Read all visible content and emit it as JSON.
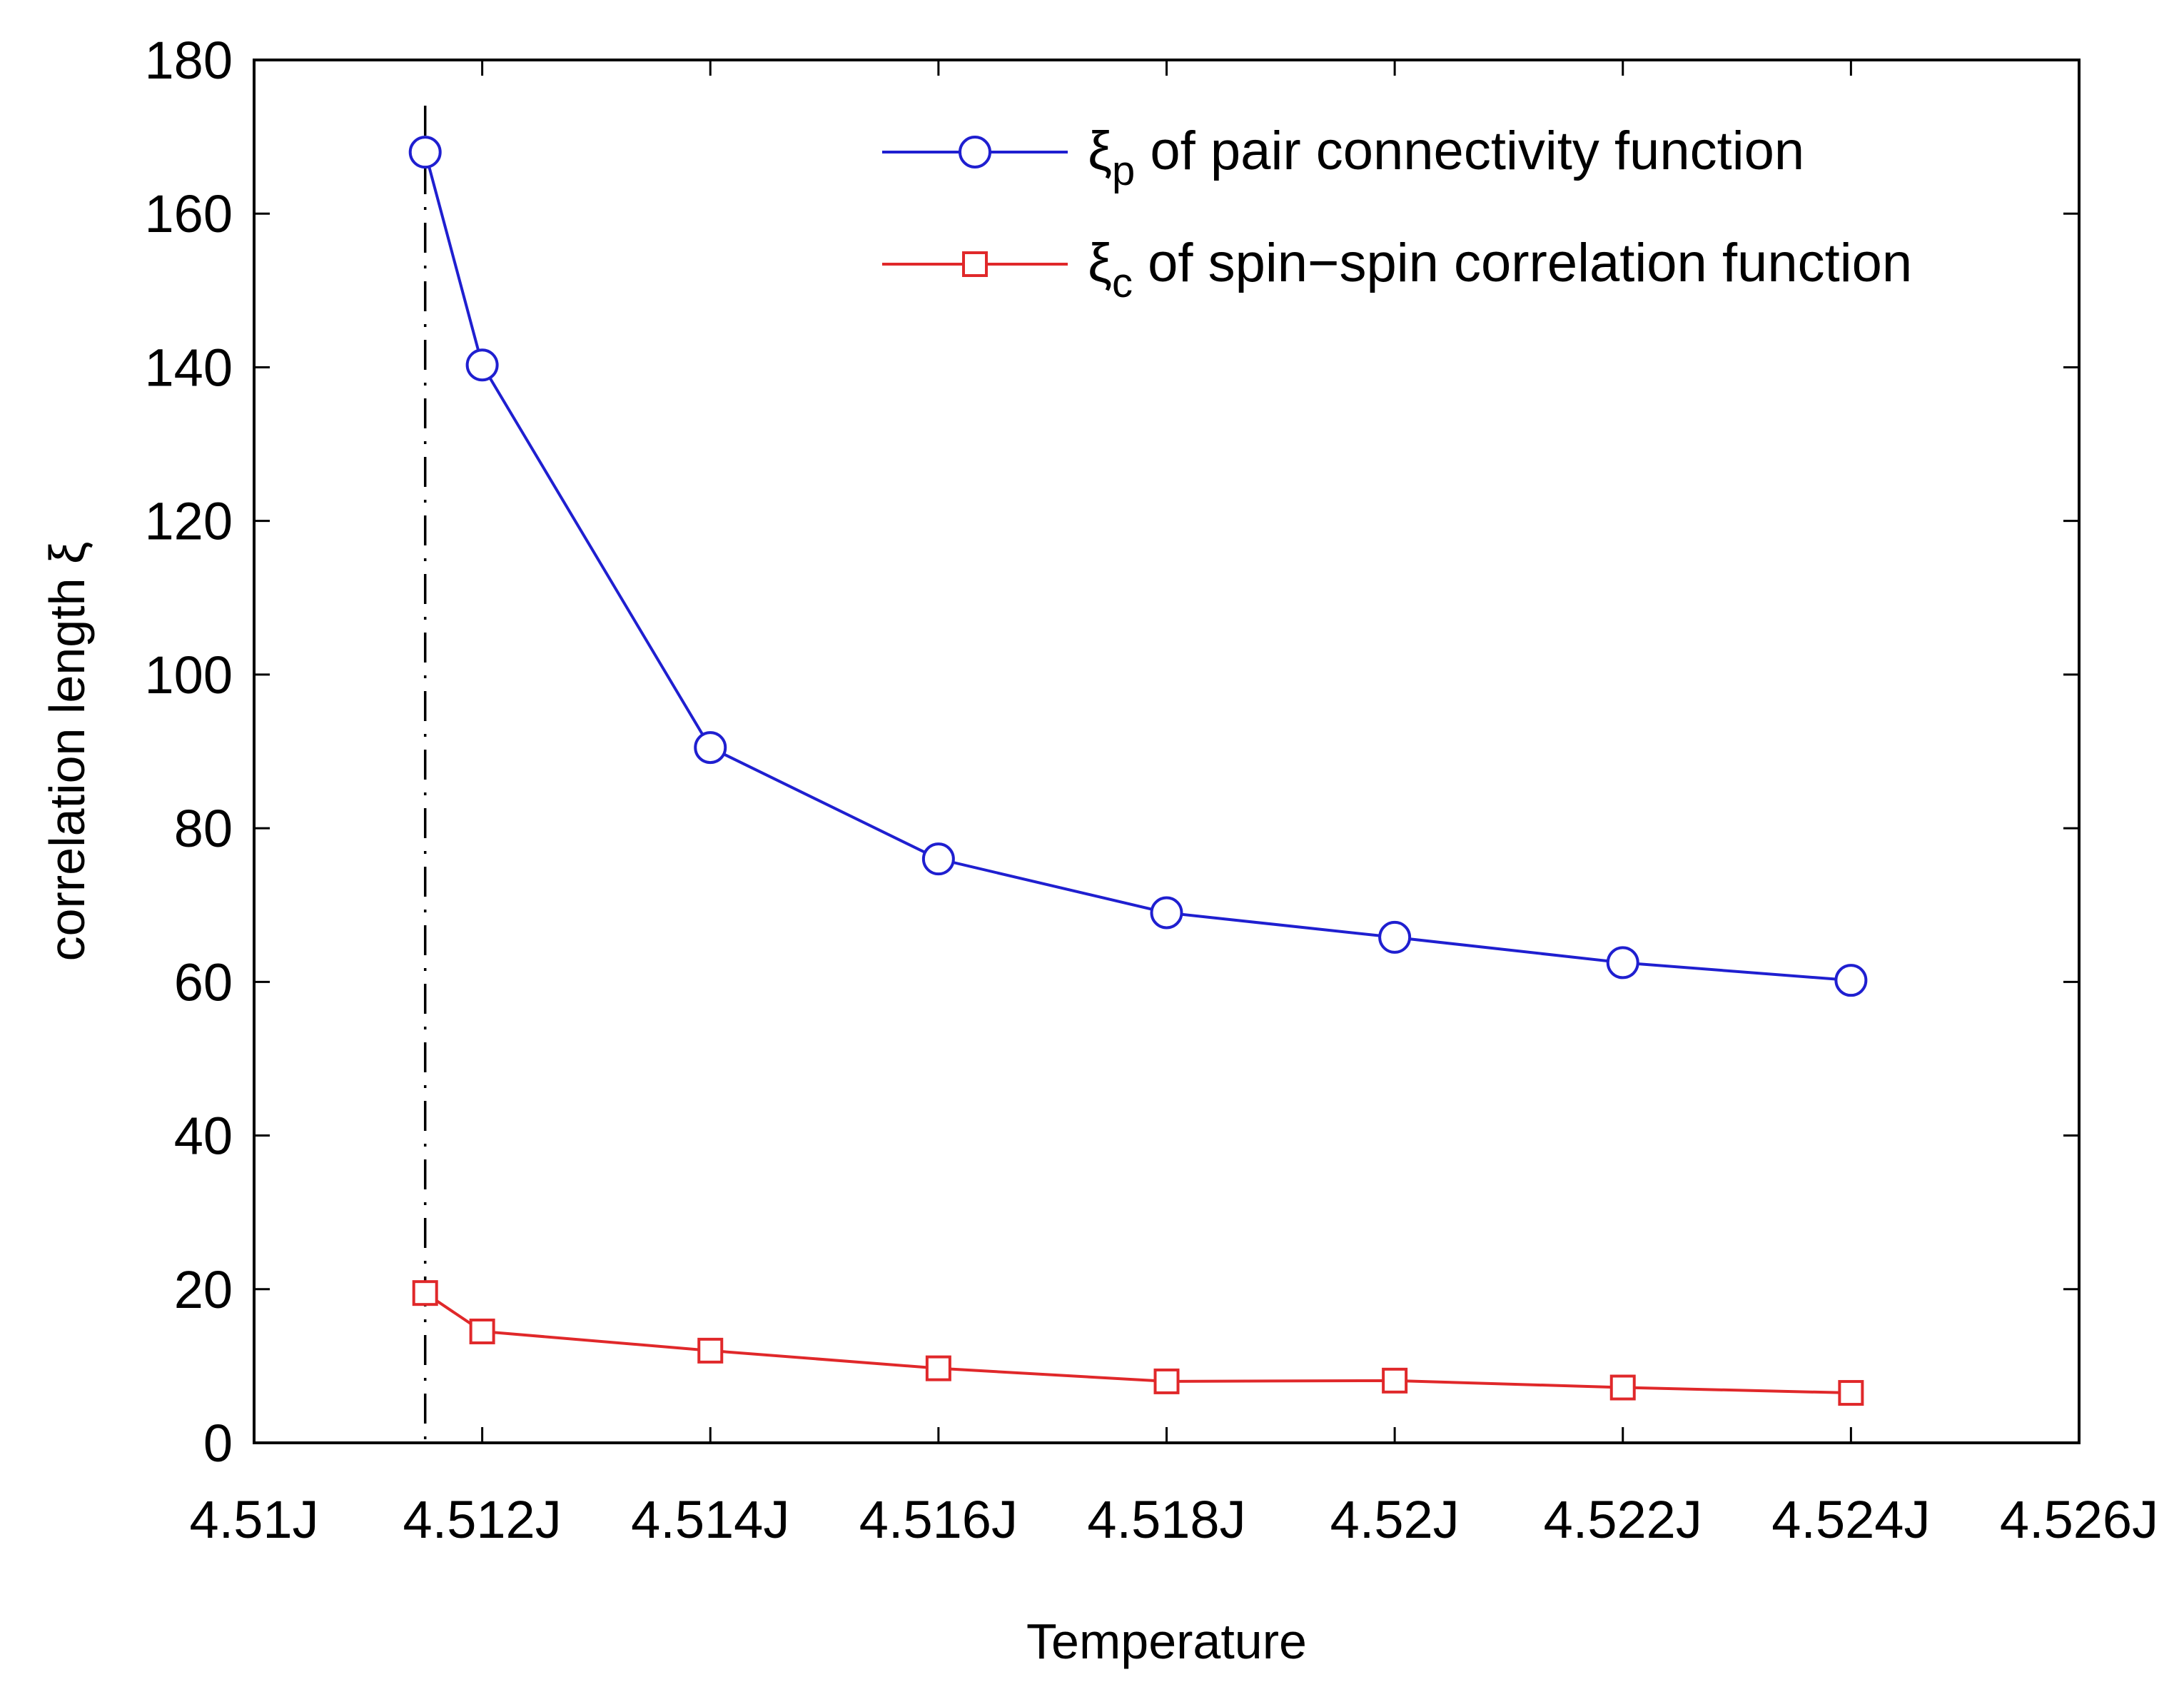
{
  "chart_data": {
    "type": "line",
    "title": "",
    "xlabel": "Temperature",
    "ylabel": "correlation length ξ",
    "xlim": [
      4.51,
      4.526
    ],
    "ylim": [
      0,
      180
    ],
    "grid": false,
    "legend_position": "top-right",
    "x_ticks": [
      {
        "value": 4.51,
        "label": "4.51J"
      },
      {
        "value": 4.512,
        "label": "4.512J"
      },
      {
        "value": 4.514,
        "label": "4.514J"
      },
      {
        "value": 4.516,
        "label": "4.516J"
      },
      {
        "value": 4.518,
        "label": "4.518J"
      },
      {
        "value": 4.52,
        "label": "4.52J"
      },
      {
        "value": 4.522,
        "label": "4.522J"
      },
      {
        "value": 4.524,
        "label": "4.524J"
      },
      {
        "value": 4.526,
        "label": "4.526J"
      }
    ],
    "y_ticks": [
      {
        "value": 0,
        "label": "0"
      },
      {
        "value": 20,
        "label": "20"
      },
      {
        "value": 40,
        "label": "40"
      },
      {
        "value": 60,
        "label": "60"
      },
      {
        "value": 80,
        "label": "80"
      },
      {
        "value": 100,
        "label": "100"
      },
      {
        "value": 120,
        "label": "120"
      },
      {
        "value": 140,
        "label": "140"
      },
      {
        "value": 160,
        "label": "160"
      },
      {
        "value": 180,
        "label": "180"
      }
    ],
    "vertical_line": {
      "x": 4.5115,
      "style": "dash-dot",
      "color": "#000000"
    },
    "series": [
      {
        "name": "ξp of pair connectivity function",
        "symbol": "ξ",
        "subscript": "p",
        "rest": " of pair connectivity function",
        "marker": "circle",
        "color": "#1f1fd0",
        "x": [
          4.5115,
          4.512,
          4.514,
          4.516,
          4.518,
          4.52,
          4.522,
          4.524
        ],
        "y": [
          168,
          140.3,
          90.5,
          76,
          69,
          65.8,
          62.5,
          60.2
        ]
      },
      {
        "name": "ξc of spin-spin correlation function",
        "symbol": "ξ",
        "subscript": "c",
        "rest": " of spin−spin correlation function",
        "marker": "square",
        "color": "#e0282a",
        "x": [
          4.5115,
          4.512,
          4.514,
          4.516,
          4.518,
          4.52,
          4.522,
          4.524
        ],
        "y": [
          19.5,
          14.5,
          12,
          9.7,
          8,
          8.1,
          7.2,
          6.5
        ]
      }
    ]
  }
}
